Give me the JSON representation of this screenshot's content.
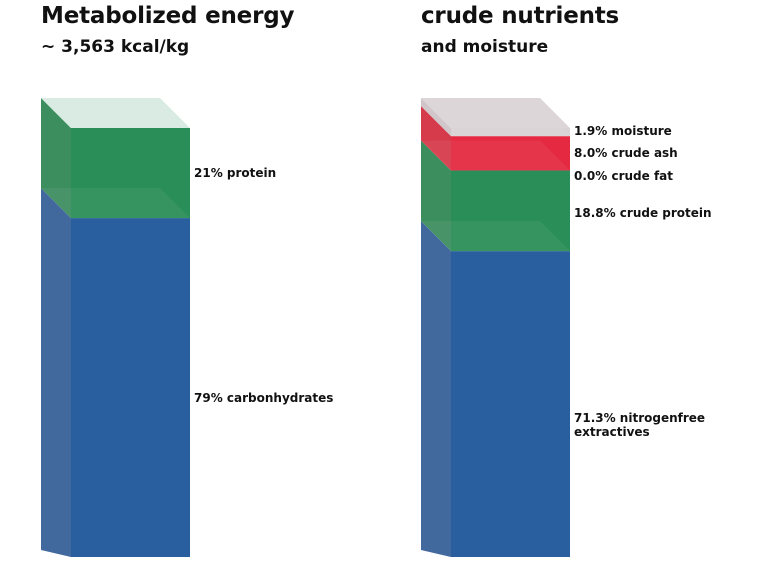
{
  "chart_data": [
    {
      "type": "stacked-bar-3d",
      "title": "Metabolized energy",
      "subtitle": "~ 3,563 kcal/kg",
      "segments": [
        {
          "name": "carbonhydrates",
          "value": 79,
          "label": "79% carbonhydrates",
          "color": "#295e9f",
          "side_color": "#41699e"
        },
        {
          "name": "protein",
          "value": 21,
          "label": "21% protein",
          "color": "#2a8e58",
          "side_color": "#3d8e5f"
        }
      ],
      "top_color": "#d9ebe2"
    },
    {
      "type": "stacked-bar-3d",
      "title": "crude nutrients",
      "subtitle": "and moisture",
      "segments": [
        {
          "name": "nitrogenfree extractives",
          "value": 71.3,
          "label": [
            "71.3% nitrogenfree",
            "extractives"
          ],
          "color": "#295e9f",
          "side_color": "#41699e"
        },
        {
          "name": "crude protein",
          "value": 18.8,
          "label": [
            "18.8% crude protein"
          ],
          "color": "#2a8e58",
          "side_color": "#3d8e5f"
        },
        {
          "name": "crude fat",
          "value": 0.0,
          "label": [
            "0.0% crude fat"
          ],
          "color": "#e9b200",
          "side_color": "#d9a800"
        },
        {
          "name": "crude ash",
          "value": 8.0,
          "label": [
            "8.0% crude ash"
          ],
          "color": "#e42940",
          "side_color": "#d63b4c"
        },
        {
          "name": "moisture",
          "value": 1.9,
          "label": [
            "1.9% moisture"
          ],
          "color": "#d9d2d5",
          "side_color": "#cfc4c8"
        }
      ],
      "top_color": "#ddd6d9"
    }
  ]
}
